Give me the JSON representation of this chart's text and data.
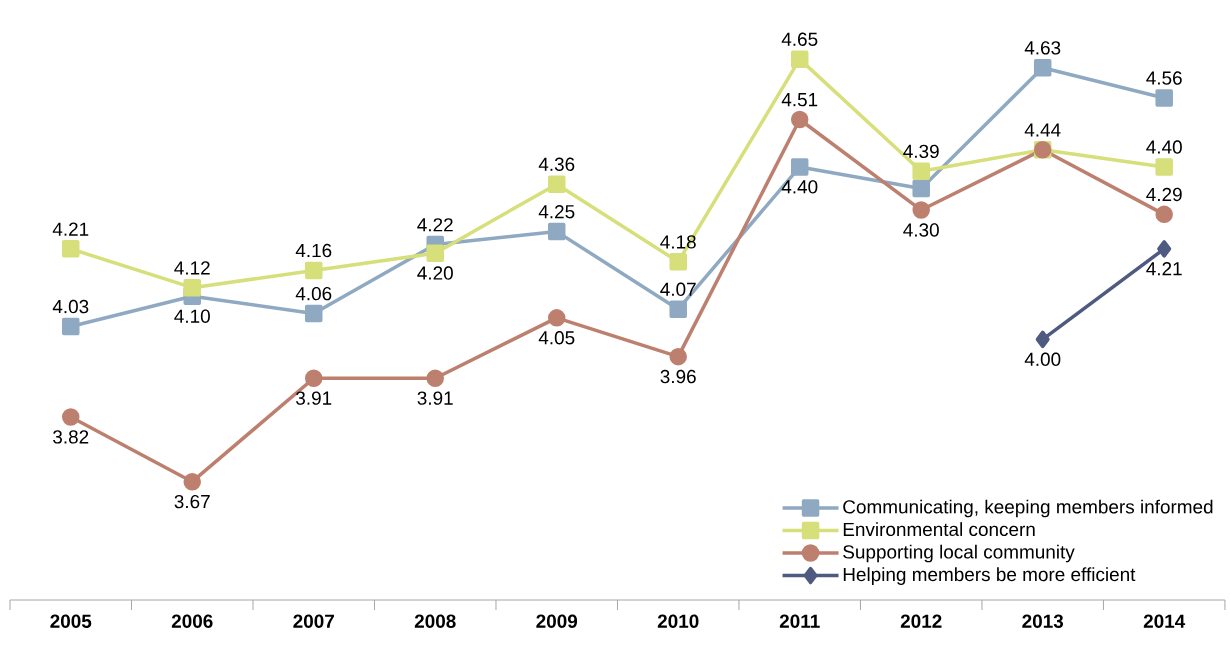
{
  "chart_data": {
    "type": "line",
    "categories": [
      "2005",
      "2006",
      "2007",
      "2008",
      "2009",
      "2010",
      "2011",
      "2012",
      "2013",
      "2014"
    ],
    "tick_labels": "x",
    "legend": "bottom right",
    "series": [
      {
        "name": "Communicating, keeping members informed",
        "color": "#8ea9c1",
        "marker": "square",
        "values": [
          4.03,
          4.1,
          4.06,
          4.22,
          4.25,
          4.07,
          4.4,
          4.35,
          4.63,
          4.56
        ],
        "value_labels": [
          "4.03",
          "4.10",
          "4.06",
          "4.22",
          "4.25",
          "4.07",
          "4.40",
          null,
          "4.63",
          "4.56"
        ]
      },
      {
        "name": "Environmental concern",
        "color": "#d6df7a",
        "marker": "square",
        "values": [
          4.21,
          4.12,
          4.16,
          4.2,
          4.36,
          4.18,
          4.65,
          4.39,
          4.44,
          4.4
        ],
        "value_labels": [
          "4.21",
          "4.12",
          "4.16",
          "4.20",
          "4.36",
          "4.18",
          "4.65",
          "4.39",
          "4.44",
          "4.40"
        ]
      },
      {
        "name": "Supporting local community",
        "color": "#bd7f6e",
        "marker": "circle",
        "values": [
          3.82,
          3.67,
          3.91,
          3.91,
          4.05,
          3.96,
          4.51,
          4.3,
          4.44,
          4.29
        ],
        "value_labels": [
          "3.82",
          "3.67",
          "3.91",
          "3.91",
          "4.05",
          "3.96",
          "4.51",
          "4.30",
          null,
          "4.29"
        ]
      },
      {
        "name": "Helping members be more efficient",
        "color": "#4f5a80",
        "marker": "diamond",
        "values": [
          null,
          null,
          null,
          null,
          null,
          null,
          null,
          null,
          4.0,
          4.21
        ],
        "value_labels": [
          null,
          null,
          null,
          null,
          null,
          null,
          null,
          null,
          "4.00",
          "4.21"
        ]
      }
    ]
  }
}
